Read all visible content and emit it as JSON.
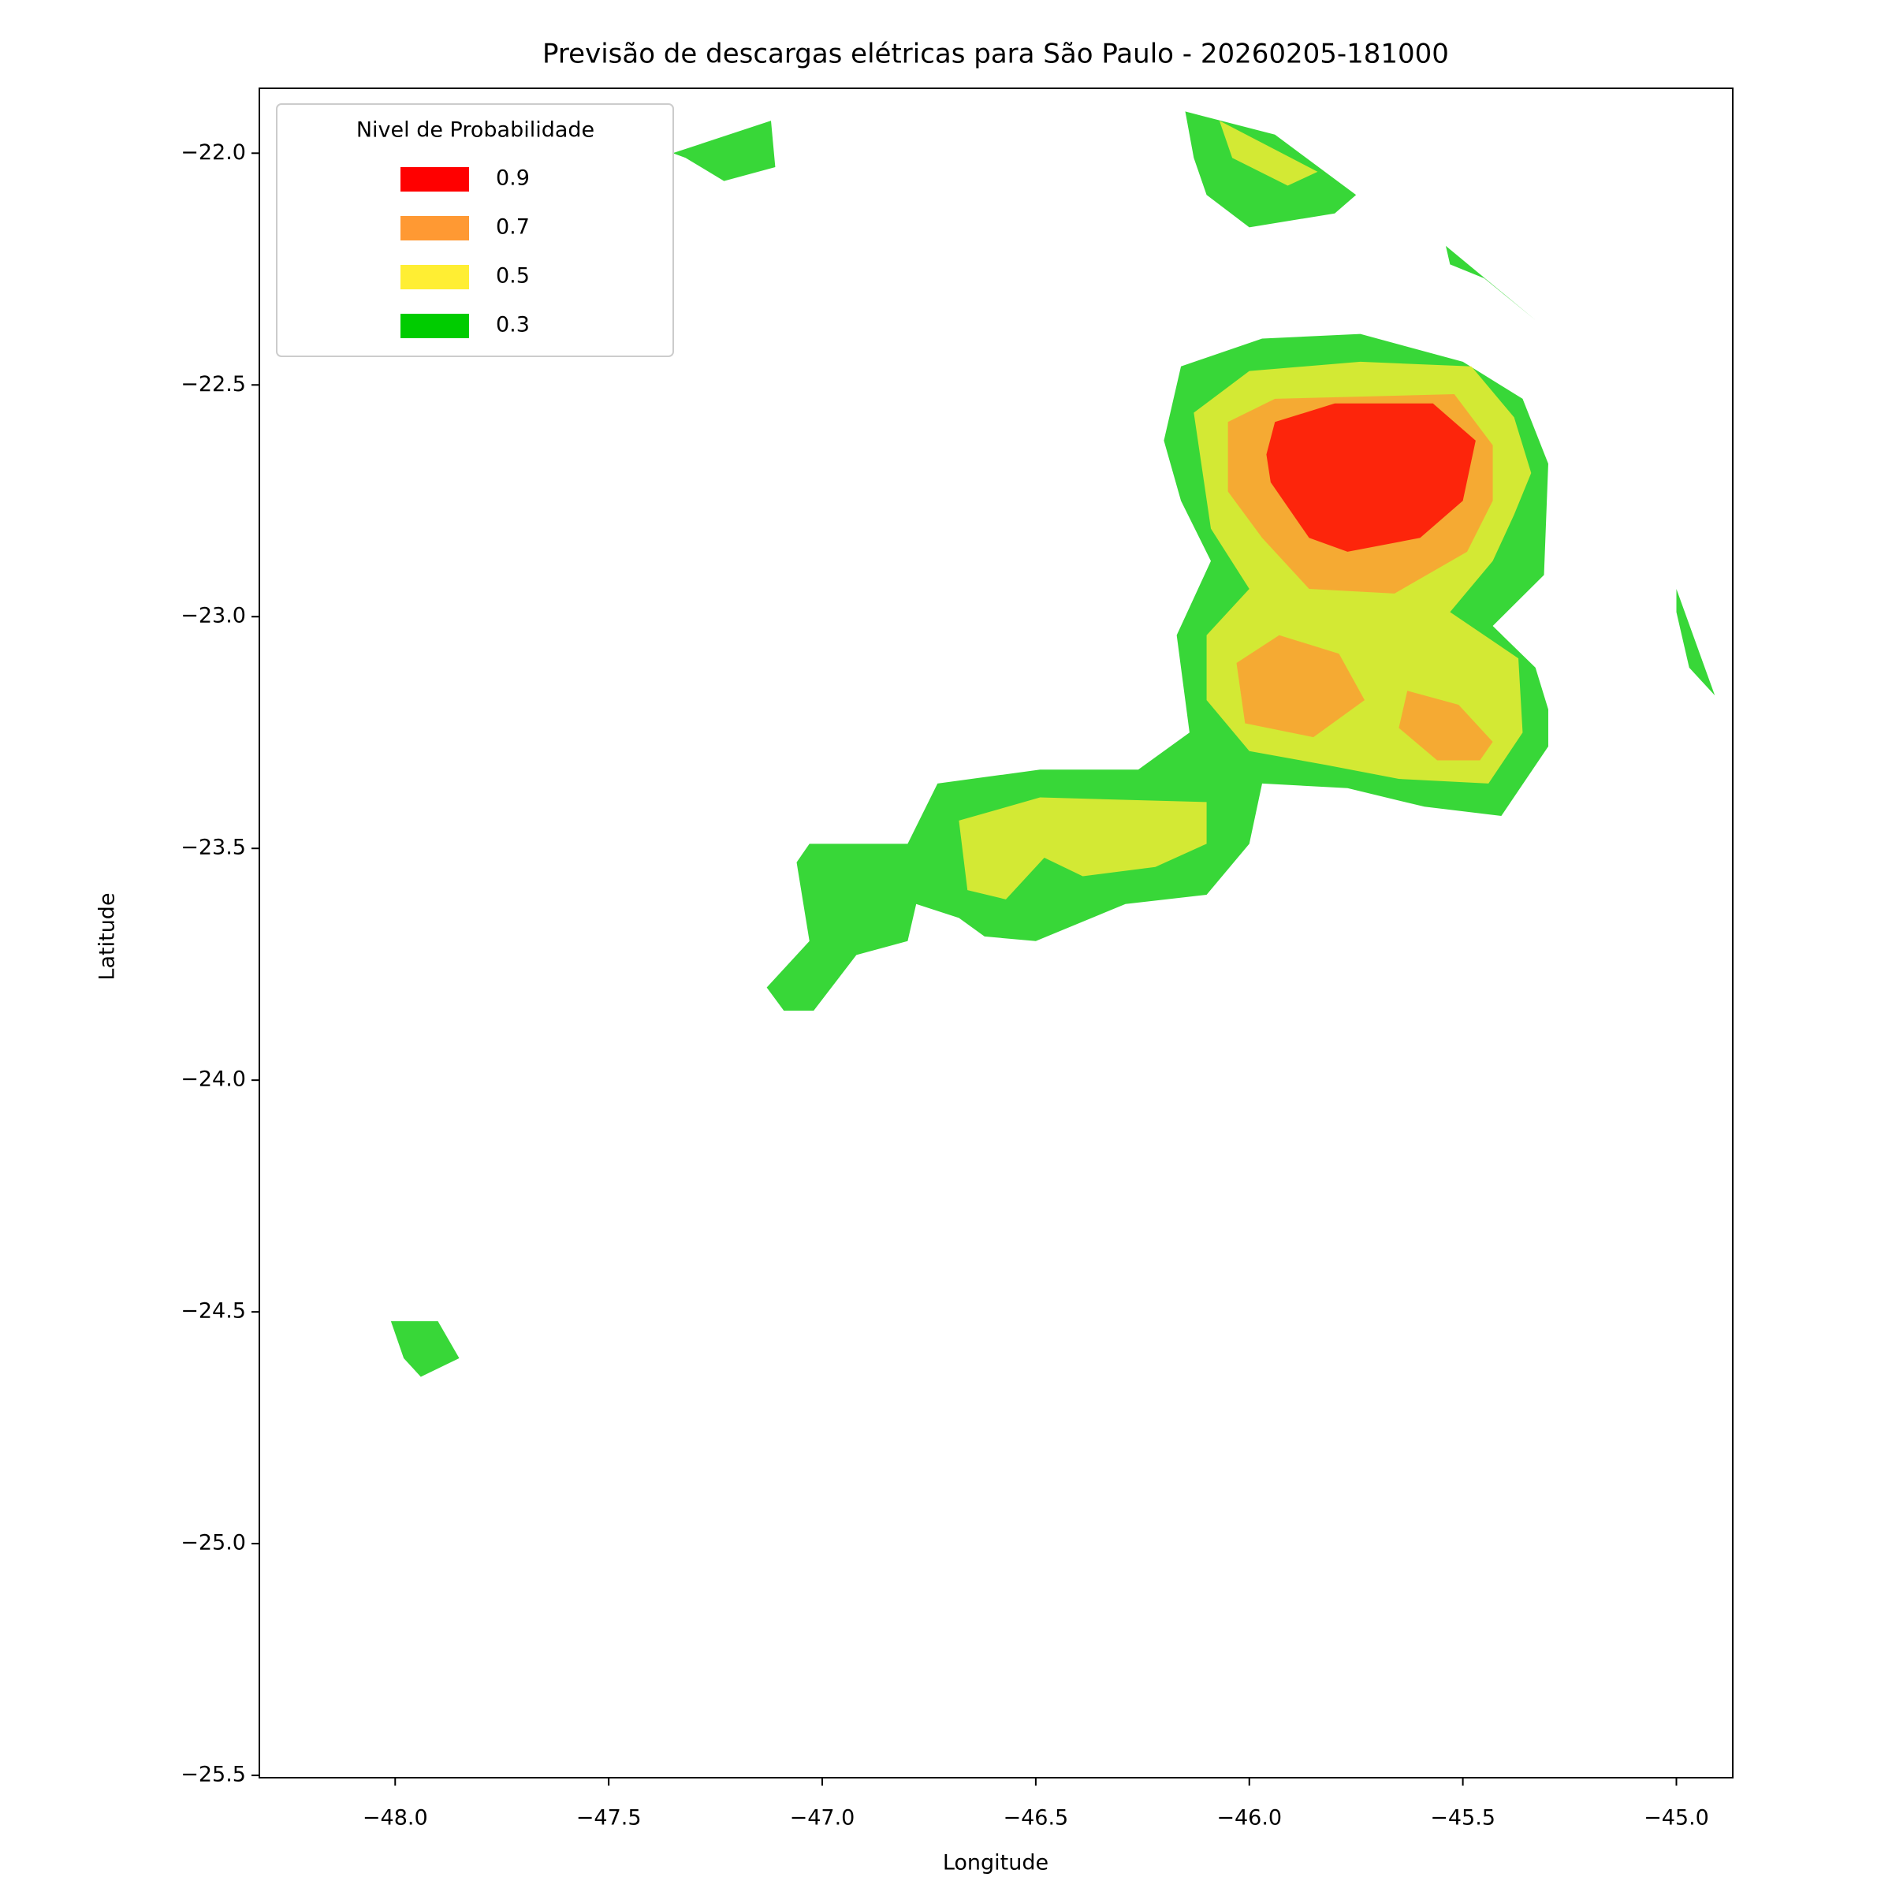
{
  "chart_data": {
    "type": "contour",
    "title": "Previsão de descargas elétricas para São Paulo - 20260205-181000",
    "xlabel": "Longitude",
    "ylabel": "Latitude",
    "xlim": [
      -48.318,
      -44.868
    ],
    "ylim": [
      -25.505,
      -21.86
    ],
    "xticks": [
      {
        "value": -48,
        "label": "−48.0"
      },
      {
        "value": -47.5,
        "label": "−47.5"
      },
      {
        "value": -47,
        "label": "−47.0"
      },
      {
        "value": -46.5,
        "label": "−46.5"
      },
      {
        "value": -46,
        "label": "−46.0"
      },
      {
        "value": -45.5,
        "label": "−45.5"
      },
      {
        "value": -45,
        "label": "−45.0"
      }
    ],
    "yticks": [
      {
        "value": -22,
        "label": "−22.0"
      },
      {
        "value": -22.5,
        "label": "−22.5"
      },
      {
        "value": -23,
        "label": "−23.0"
      },
      {
        "value": -23.5,
        "label": "−23.5"
      },
      {
        "value": -24,
        "label": "−24.0"
      },
      {
        "value": -24.5,
        "label": "−24.5"
      },
      {
        "value": -25,
        "label": "−25.0"
      },
      {
        "value": -25.5,
        "label": "−25.5"
      }
    ],
    "legend_title": "Nivel de Probabilidade",
    "legend_position": "upper left",
    "series": [
      {
        "name": "0.9",
        "color": "#ff0000",
        "polygons": [
          [
            [
              -45.94,
              -22.58
            ],
            [
              -45.8,
              -22.54
            ],
            [
              -45.57,
              -22.54
            ],
            [
              -45.47,
              -22.62
            ],
            [
              -45.5,
              -22.75
            ],
            [
              -45.6,
              -22.83
            ],
            [
              -45.77,
              -22.86
            ],
            [
              -45.86,
              -22.83
            ],
            [
              -45.95,
              -22.71
            ],
            [
              -45.96,
              -22.65
            ]
          ]
        ]
      },
      {
        "name": "0.7",
        "color": "#ff9933",
        "polygons": [
          [
            [
              -45.94,
              -22.53
            ],
            [
              -45.52,
              -22.52
            ],
            [
              -45.43,
              -22.63
            ],
            [
              -45.43,
              -22.75
            ],
            [
              -45.49,
              -22.86
            ],
            [
              -45.66,
              -22.95
            ],
            [
              -45.86,
              -22.94
            ],
            [
              -45.97,
              -22.83
            ],
            [
              -46.05,
              -22.73
            ],
            [
              -46.05,
              -22.58
            ]
          ],
          [
            [
              -46.03,
              -23.1
            ],
            [
              -45.93,
              -23.04
            ],
            [
              -45.79,
              -23.08
            ],
            [
              -45.73,
              -23.18
            ],
            [
              -45.85,
              -23.26
            ],
            [
              -46.01,
              -23.23
            ]
          ],
          [
            [
              -45.63,
              -23.16
            ],
            [
              -45.51,
              -23.19
            ],
            [
              -45.43,
              -23.27
            ],
            [
              -45.46,
              -23.31
            ],
            [
              -45.56,
              -23.31
            ],
            [
              -45.65,
              -23.24
            ]
          ]
        ]
      },
      {
        "name": "0.5",
        "color": "#ffee33",
        "polygons": [
          [
            [
              -46.0,
              -22.47
            ],
            [
              -45.74,
              -22.45
            ],
            [
              -45.48,
              -22.46
            ],
            [
              -45.38,
              -22.57
            ],
            [
              -45.34,
              -22.69
            ],
            [
              -45.38,
              -22.78
            ],
            [
              -45.43,
              -22.88
            ],
            [
              -45.53,
              -22.99
            ],
            [
              -45.37,
              -23.09
            ],
            [
              -45.36,
              -23.25
            ],
            [
              -45.44,
              -23.36
            ],
            [
              -45.65,
              -23.35
            ],
            [
              -45.82,
              -23.32
            ],
            [
              -46.0,
              -23.29
            ],
            [
              -46.1,
              -23.18
            ],
            [
              -46.1,
              -23.04
            ],
            [
              -46.0,
              -22.94
            ],
            [
              -46.09,
              -22.81
            ],
            [
              -46.13,
              -22.56
            ]
          ],
          [
            [
              -46.68,
              -23.44
            ],
            [
              -46.49,
              -23.39
            ],
            [
              -46.1,
              -23.4
            ],
            [
              -46.1,
              -23.49
            ],
            [
              -46.22,
              -23.54
            ],
            [
              -46.39,
              -23.56
            ],
            [
              -46.48,
              -23.52
            ],
            [
              -46.57,
              -23.61
            ],
            [
              -46.66,
              -23.59
            ]
          ],
          [
            [
              -46.07,
              -21.93
            ],
            [
              -45.84,
              -22.04
            ],
            [
              -45.91,
              -22.07
            ],
            [
              -46.04,
              -22.01
            ]
          ]
        ]
      },
      {
        "name": "0.3",
        "color": "#00cc00",
        "polygons": [
          [
            [
              -45.97,
              -22.4
            ],
            [
              -45.74,
              -22.39
            ],
            [
              -45.5,
              -22.45
            ],
            [
              -45.36,
              -22.53
            ],
            [
              -45.3,
              -22.67
            ],
            [
              -45.31,
              -22.91
            ],
            [
              -45.43,
              -23.02
            ],
            [
              -45.33,
              -23.11
            ],
            [
              -45.3,
              -23.2
            ],
            [
              -45.3,
              -23.28
            ],
            [
              -45.41,
              -23.43
            ],
            [
              -45.59,
              -23.41
            ],
            [
              -45.77,
              -23.37
            ],
            [
              -45.97,
              -23.36
            ],
            [
              -46.0,
              -23.49
            ],
            [
              -46.1,
              -23.6
            ],
            [
              -46.29,
              -23.62
            ],
            [
              -46.5,
              -23.7
            ],
            [
              -46.62,
              -23.69
            ],
            [
              -46.68,
              -23.65
            ],
            [
              -46.78,
              -23.62
            ],
            [
              -46.8,
              -23.7
            ],
            [
              -46.92,
              -23.73
            ],
            [
              -47.02,
              -23.85
            ],
            [
              -47.09,
              -23.85
            ],
            [
              -47.13,
              -23.8
            ],
            [
              -47.03,
              -23.7
            ],
            [
              -47.06,
              -23.53
            ],
            [
              -47.03,
              -23.49
            ],
            [
              -46.8,
              -23.49
            ],
            [
              -46.73,
              -23.36
            ],
            [
              -46.49,
              -23.33
            ],
            [
              -46.26,
              -23.33
            ],
            [
              -46.14,
              -23.25
            ],
            [
              -46.17,
              -23.04
            ],
            [
              -46.09,
              -22.88
            ],
            [
              -46.16,
              -22.75
            ],
            [
              -46.2,
              -22.62
            ],
            [
              -46.16,
              -22.46
            ]
          ],
          [
            [
              -46.15,
              -21.91
            ],
            [
              -45.94,
              -21.96
            ],
            [
              -45.75,
              -22.09
            ],
            [
              -45.8,
              -22.13
            ],
            [
              -46.0,
              -22.16
            ],
            [
              -46.1,
              -22.09
            ],
            [
              -46.13,
              -22.01
            ]
          ],
          [
            [
              -47.35,
              -22.0
            ],
            [
              -47.12,
              -21.93
            ],
            [
              -47.11,
              -22.03
            ],
            [
              -47.23,
              -22.06
            ],
            [
              -47.32,
              -22.01
            ]
          ],
          [
            [
              -48.01,
              -24.52
            ],
            [
              -47.9,
              -24.52
            ],
            [
              -47.85,
              -24.6
            ],
            [
              -47.94,
              -24.64
            ],
            [
              -47.98,
              -24.6
            ]
          ],
          [
            [
              -45.0,
              -22.94
            ],
            [
              -44.91,
              -23.17
            ],
            [
              -44.97,
              -23.11
            ],
            [
              -45.0,
              -22.99
            ]
          ],
          [
            [
              -45.54,
              -22.2
            ],
            [
              -45.33,
              -22.36
            ],
            [
              -45.45,
              -22.27
            ],
            [
              -45.53,
              -22.24
            ]
          ]
        ]
      }
    ]
  }
}
